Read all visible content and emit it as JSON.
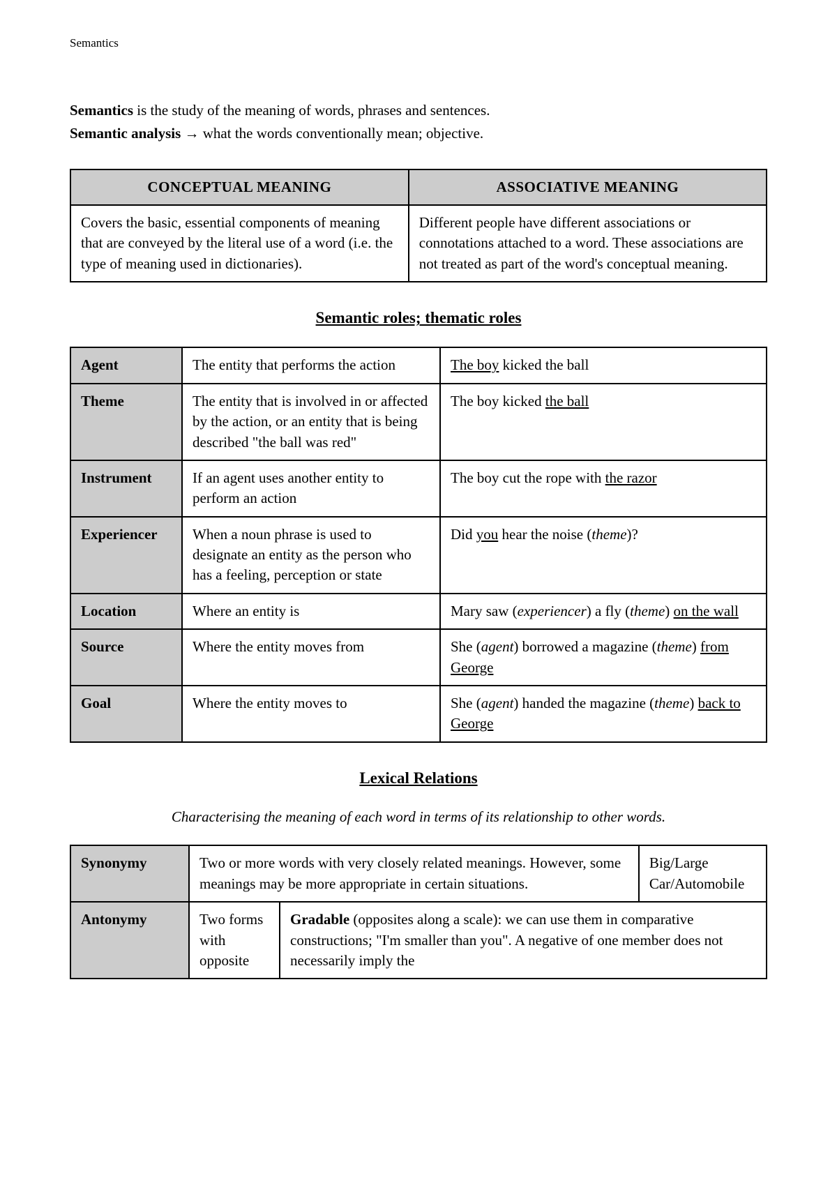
{
  "header": {
    "title": "Semantics"
  },
  "intro": {
    "line1_bold": "Semantics",
    "line1_rest": " is the study of the meaning of words, phrases and sentences.",
    "line2_bold": "Semantic analysis",
    "line2_arrow": "→",
    "line2_rest": " what the words conventionally mean; objective."
  },
  "meaning_table": {
    "headers": [
      "CONCEPTUAL MEANING",
      "ASSOCIATIVE MEANING"
    ],
    "cells": [
      "Covers the basic, essential components of meaning that are conveyed by the literal use of a word (i.e. the type of meaning used in dictionaries).",
      "Different people have different associations or connotations attached to a word. These associations are not treated as part of the word's conceptual meaning."
    ]
  },
  "semantic_roles": {
    "title": "Semantic roles; thematic roles",
    "rows": [
      {
        "label": "Agent",
        "desc": "The entity that performs the action",
        "ex_u": "The boy",
        "ex_rest": " kicked the ball"
      },
      {
        "label": "Theme",
        "desc": "The entity that is involved in or affected by the action, or an entity that is being described \"the ball was red\"",
        "ex_pre": "The boy kicked ",
        "ex_u": "the ball"
      },
      {
        "label": "Instrument",
        "desc": "If an agent uses another entity to perform an action",
        "ex_pre": "The boy cut the rope with ",
        "ex_u": "the razor"
      },
      {
        "label": "Experiencer",
        "desc": "When a noun phrase is used to designate an entity as the person who has a feeling, perception or state",
        "ex_pre": "Did ",
        "ex_u": "you",
        "ex_post": " hear the noise (",
        "ex_ital": "theme",
        "ex_end": ")?"
      },
      {
        "label": "Location",
        "desc": "Where an entity is",
        "ex_parts": "location"
      },
      {
        "label": "Source",
        "desc": "Where the entity moves from",
        "ex_parts": "source"
      },
      {
        "label": "Goal",
        "desc": "Where the entity moves to",
        "ex_parts": "goal"
      }
    ],
    "location_ex": {
      "p1": "Mary saw (",
      "i1": "experiencer",
      "p2": ") a fly (",
      "i2": "theme",
      "p3": ") ",
      "u1": "on the wall"
    },
    "source_ex": {
      "p1": "She (",
      "i1": "agent",
      "p2": ") borrowed a magazine (",
      "i2": "theme",
      "p3": ") ",
      "u1": "from George"
    },
    "goal_ex": {
      "p1": "She (",
      "i1": "agent",
      "p2": ") handed the magazine (",
      "i2": "theme",
      "p3": ") ",
      "u1": "back to George"
    }
  },
  "lexical": {
    "title": "Lexical Relations",
    "subtitle": "Characterising the meaning of each word in terms of its relationship to other words.",
    "synonymy": {
      "label": "Synonymy",
      "desc": "Two or more words with very closely related meanings. However, some meanings may be more appropriate in certain situations.",
      "ex1": "Big/Large",
      "ex2": "Car/Automobile"
    },
    "antonymy": {
      "label": "Antonymy",
      "desc": "Two forms with opposite",
      "gradable_bold": "Gradable",
      "gradable_rest": " (opposites along a scale): we can use them in comparative constructions; \"I'm smaller than you\". A negative of one member does not necessarily imply the"
    }
  },
  "colors": {
    "bg": "#ffffff",
    "text": "#000000",
    "border": "#000000",
    "header_bg": "#cccccc"
  }
}
